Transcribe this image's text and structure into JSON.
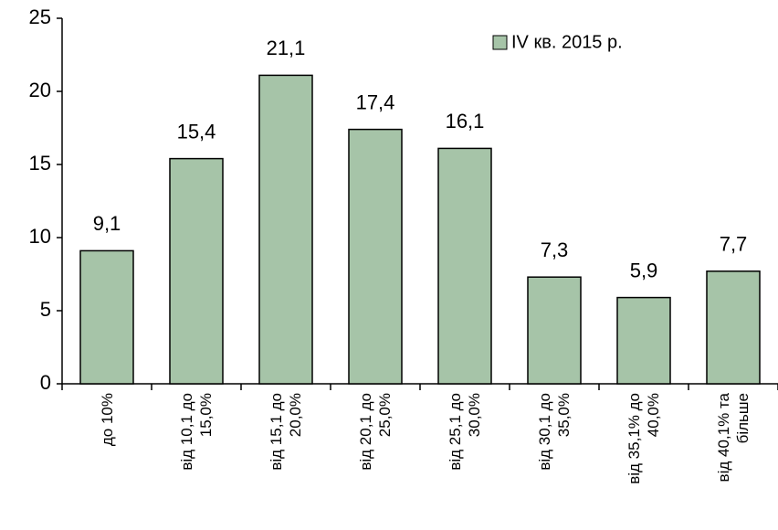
{
  "chart_data": {
    "type": "bar",
    "categories": [
      "до 10%",
      "від 10,1 до 15,0%",
      "від 15,1 до 20,0%",
      "від 20,1 до 25,0%",
      "від 25,1 до 30,0%",
      "від 30,1 до 35,0%",
      "від 35,1% до 40,0%",
      "від 40,1% та більше"
    ],
    "series": [
      {
        "name": "IV кв. 2015 р.",
        "color": "#a6c4a8",
        "values": [
          9.1,
          15.4,
          21.1,
          17.4,
          16.1,
          7.3,
          5.9,
          7.7
        ],
        "value_labels": [
          "9,1",
          "15,4",
          "21,1",
          "17,4",
          "16,1",
          "7,3",
          "5,9",
          "7,7"
        ]
      }
    ],
    "ylim": [
      0,
      25
    ],
    "yticks": [
      0,
      5,
      10,
      15,
      20,
      25
    ],
    "grid": false,
    "legend": "top-right"
  }
}
